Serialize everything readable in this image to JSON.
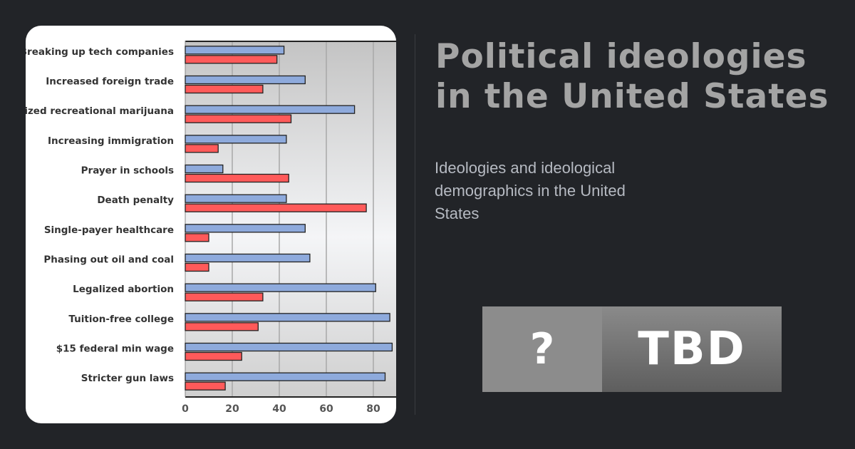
{
  "title": "Political ideologies in the United States",
  "title_lines": [
    "Political ideologies",
    "in the United States"
  ],
  "subtitle": "Ideologies and ideological demographics in the United States",
  "badge": {
    "icon": "?",
    "label": "TBD"
  },
  "chart_data": {
    "type": "bar",
    "orientation": "horizontal",
    "categories": [
      "Breaking up tech companies",
      "Increased foreign trade",
      "Legalized recreational marijuana",
      "Increasing immigration",
      "Prayer in schools",
      "Death penalty",
      "Single-payer healthcare",
      "Phasing out oil and coal",
      "Legalized abortion",
      "Tuition-free college",
      "$15 federal min wage",
      "Stricter gun laws"
    ],
    "series": [
      {
        "color": "#8eaadc",
        "values": [
          42,
          51,
          72,
          43,
          16,
          43,
          51,
          53,
          81,
          87,
          88,
          85
        ]
      },
      {
        "color": "#ff5a5a",
        "values": [
          39,
          33,
          45,
          14,
          44,
          77,
          10,
          10,
          33,
          31,
          24,
          17
        ]
      }
    ],
    "xticks": [
      "0",
      "20",
      "40",
      "60",
      "80"
    ],
    "xlim": [
      0,
      90
    ],
    "grid": true
  }
}
